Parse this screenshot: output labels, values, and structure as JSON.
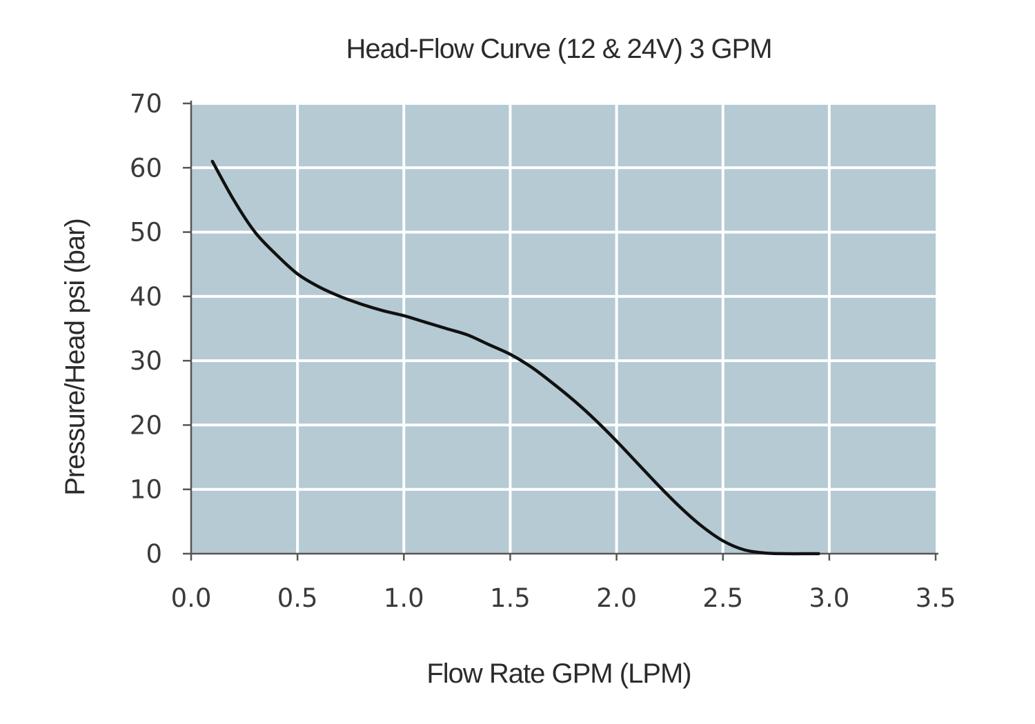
{
  "chart_data": {
    "type": "line",
    "title": "Head-Flow Curve (12 & 24V) 3 GPM",
    "xlabel": "Flow Rate GPM (LPM)",
    "ylabel": "Pressure/Head psi (bar)",
    "xlim": [
      0,
      3.5
    ],
    "ylim": [
      0,
      70
    ],
    "x_ticks": [
      "0.0",
      "0.5",
      "1.0",
      "1.5",
      "2.0",
      "2.5",
      "3.0",
      "3.5"
    ],
    "y_ticks": [
      "0",
      "10",
      "20",
      "30",
      "40",
      "50",
      "60",
      "70"
    ],
    "grid": true,
    "legend": "none",
    "colors": {
      "plot_background": "#b5cad3",
      "grid": "#ffffff",
      "line": "#111111",
      "axis": "#555555"
    },
    "series": [
      {
        "x": [
          0.1,
          0.2,
          0.3,
          0.4,
          0.5,
          0.6,
          0.7,
          0.8,
          0.9,
          1.0,
          1.1,
          1.2,
          1.3,
          1.4,
          1.5,
          1.6,
          1.7,
          1.8,
          1.9,
          2.0,
          2.1,
          2.2,
          2.3,
          2.4,
          2.5,
          2.6,
          2.7,
          2.8,
          2.9,
          2.95
        ],
        "y": [
          61,
          55,
          50,
          46.5,
          43.5,
          41.5,
          40,
          38.8,
          37.8,
          37,
          36,
          35,
          34,
          32.5,
          31,
          29,
          26.5,
          23.8,
          20.8,
          17.5,
          14,
          10.5,
          7.2,
          4.3,
          2,
          0.6,
          0.1,
          0,
          0,
          0
        ]
      }
    ]
  }
}
